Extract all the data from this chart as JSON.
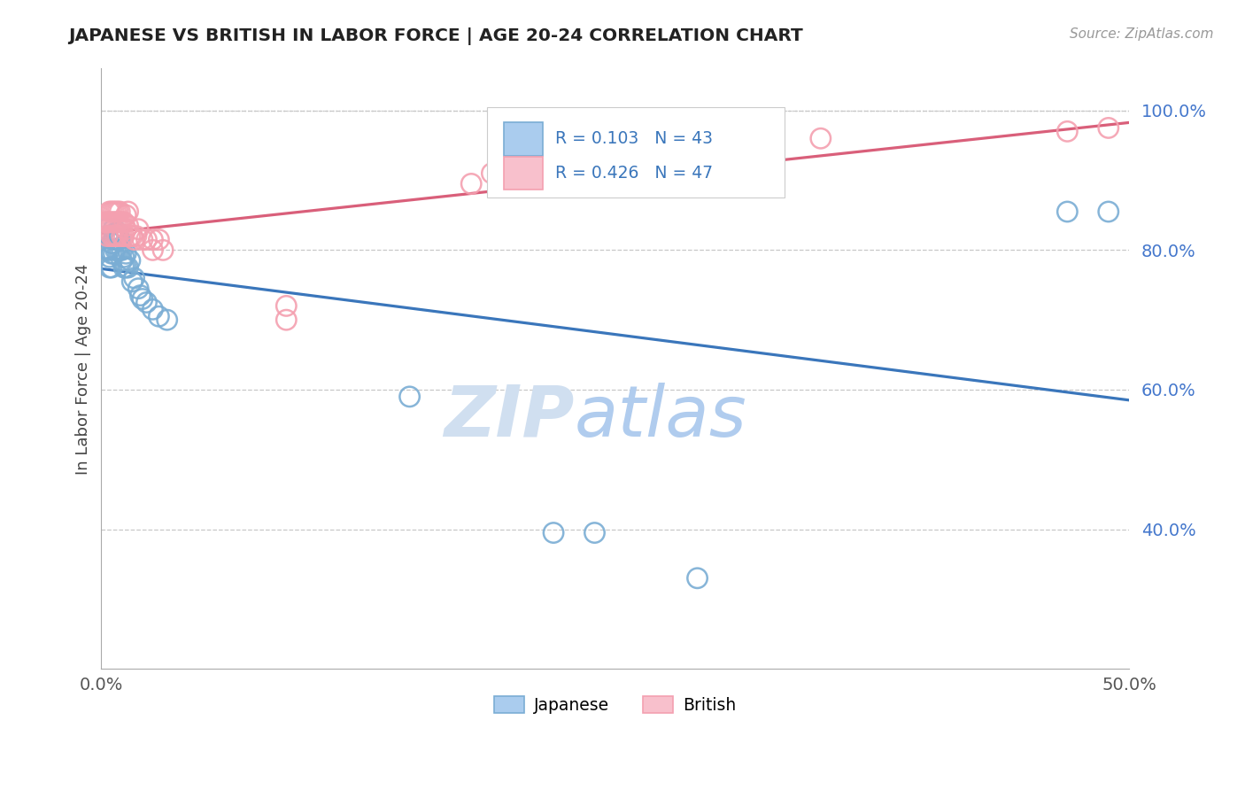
{
  "title": "JAPANESE VS BRITISH IN LABOR FORCE | AGE 20-24 CORRELATION CHART",
  "source": "Source: ZipAtlas.com",
  "ylabel": "In Labor Force | Age 20-24",
  "xlim": [
    0.0,
    0.5
  ],
  "ylim": [
    0.2,
    1.06
  ],
  "xtick_labels": [
    "0.0%",
    "50.0%"
  ],
  "xtick_vals": [
    0.0,
    0.5
  ],
  "ytick_labels": [
    "40.0%",
    "60.0%",
    "80.0%",
    "100.0%"
  ],
  "ytick_vals": [
    0.4,
    0.6,
    0.8,
    1.0
  ],
  "japanese_R": 0.103,
  "japanese_N": 43,
  "british_R": 0.426,
  "british_N": 47,
  "japanese_color": "#7aadd4",
  "british_color": "#f4a0b0",
  "line_japanese_color": "#3a76bb",
  "line_british_color": "#d95f7a",
  "background_color": "#FFFFFF",
  "grid_color": "#c8c8c8",
  "title_color": "#222222",
  "source_color": "#999999",
  "tick_color": "#4477CC",
  "watermark_zip": "#c8d8ee",
  "watermark_atlas": "#c8d8ee",
  "japanese_x": [
    0.002,
    0.003,
    0.003,
    0.004,
    0.004,
    0.004,
    0.005,
    0.005,
    0.005,
    0.006,
    0.006,
    0.006,
    0.007,
    0.007,
    0.007,
    0.008,
    0.008,
    0.008,
    0.009,
    0.009,
    0.01,
    0.01,
    0.011,
    0.011,
    0.012,
    0.012,
    0.013,
    0.014,
    0.015,
    0.016,
    0.018,
    0.019,
    0.02,
    0.022,
    0.025,
    0.028,
    0.032,
    0.15,
    0.22,
    0.24,
    0.29,
    0.47,
    0.49
  ],
  "japanese_y": [
    0.83,
    0.82,
    0.8,
    0.8,
    0.79,
    0.775,
    0.81,
    0.795,
    0.775,
    0.83,
    0.815,
    0.795,
    0.825,
    0.815,
    0.8,
    0.825,
    0.815,
    0.8,
    0.815,
    0.8,
    0.8,
    0.785,
    0.79,
    0.775,
    0.795,
    0.775,
    0.775,
    0.785,
    0.755,
    0.76,
    0.745,
    0.735,
    0.73,
    0.725,
    0.715,
    0.705,
    0.7,
    0.59,
    0.395,
    0.395,
    0.33,
    0.855,
    0.855
  ],
  "british_x": [
    0.002,
    0.003,
    0.003,
    0.004,
    0.004,
    0.005,
    0.005,
    0.005,
    0.006,
    0.006,
    0.006,
    0.007,
    0.007,
    0.007,
    0.008,
    0.008,
    0.008,
    0.009,
    0.009,
    0.01,
    0.01,
    0.011,
    0.011,
    0.012,
    0.012,
    0.013,
    0.013,
    0.014,
    0.015,
    0.016,
    0.017,
    0.018,
    0.02,
    0.022,
    0.025,
    0.025,
    0.028,
    0.03,
    0.09,
    0.09,
    0.18,
    0.19,
    0.2,
    0.21,
    0.35,
    0.47,
    0.49
  ],
  "british_y": [
    0.84,
    0.84,
    0.82,
    0.855,
    0.84,
    0.855,
    0.84,
    0.82,
    0.855,
    0.84,
    0.82,
    0.855,
    0.84,
    0.82,
    0.855,
    0.84,
    0.82,
    0.855,
    0.84,
    0.84,
    0.82,
    0.84,
    0.82,
    0.85,
    0.83,
    0.855,
    0.835,
    0.82,
    0.82,
    0.815,
    0.82,
    0.83,
    0.815,
    0.815,
    0.815,
    0.8,
    0.815,
    0.8,
    0.72,
    0.7,
    0.895,
    0.91,
    0.92,
    0.93,
    0.96,
    0.97,
    0.975
  ]
}
